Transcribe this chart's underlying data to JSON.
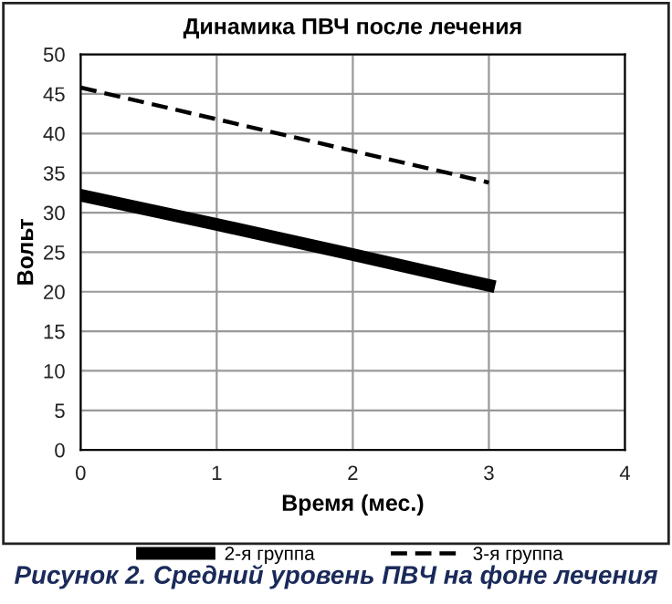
{
  "chart_data": {
    "type": "line",
    "title": "Динамика ПВЧ после лечения",
    "xlabel": "Время (мес.)",
    "ylabel": "Вольт",
    "annotations": [
      "Рисунок 2. Средний уровень ПВЧ на фоне лечения"
    ],
    "x": [
      0,
      1,
      2,
      3
    ],
    "series": [
      {
        "name": "2-я группа",
        "color": "#000000",
        "values": [
          32.2,
          28.5,
          24.7,
          20.8
        ],
        "line_style": "solid"
      },
      {
        "name": "3-я группа",
        "color": "#000000",
        "values": [
          45.8,
          41.8,
          37.8,
          33.8
        ],
        "line_style": "dashed"
      }
    ],
    "xlim": [
      0,
      4
    ],
    "xticks": [
      0,
      1,
      2,
      3,
      4
    ],
    "ylim": [
      0,
      50
    ],
    "yticks": [
      0,
      5,
      10,
      15,
      20,
      25,
      30,
      35,
      40,
      45,
      50
    ],
    "grid": true,
    "legend": "bottom",
    "marker": "none"
  }
}
